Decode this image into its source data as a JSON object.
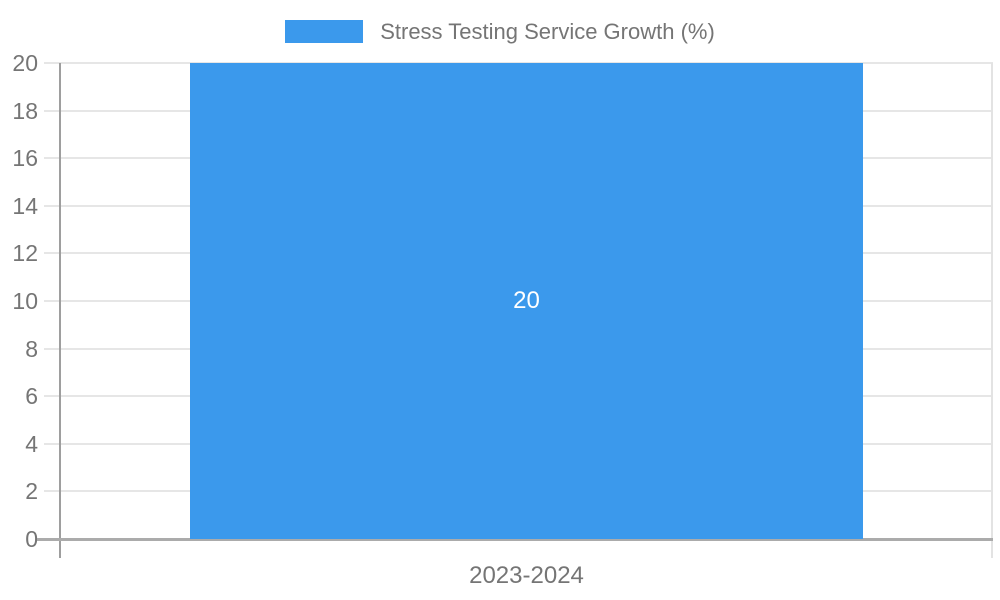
{
  "chart_data": {
    "type": "bar",
    "legend": "Stress Testing Service Growth (%)",
    "legend_position": "top",
    "categories": [
      "2023-2024"
    ],
    "values": [
      20
    ],
    "value_labels": [
      "20"
    ],
    "ylim": [
      0,
      20
    ],
    "ytick_step": 2,
    "ytick_labels": [
      "0",
      "2",
      "4",
      "6",
      "8",
      "10",
      "12",
      "14",
      "16",
      "18",
      "20"
    ],
    "grid": true,
    "title": "",
    "xlabel": "",
    "ylabel": ""
  },
  "colors": {
    "bar": "#3B99EC",
    "bar_value_text": "#FFFFFF",
    "axis_text": "#757575",
    "gridline": "#E6E6E6",
    "axis_line": "#9E9E9E",
    "baseline": "#ABABAB",
    "right_border": "#E3E3E3",
    "background": "#FFFFFF"
  }
}
